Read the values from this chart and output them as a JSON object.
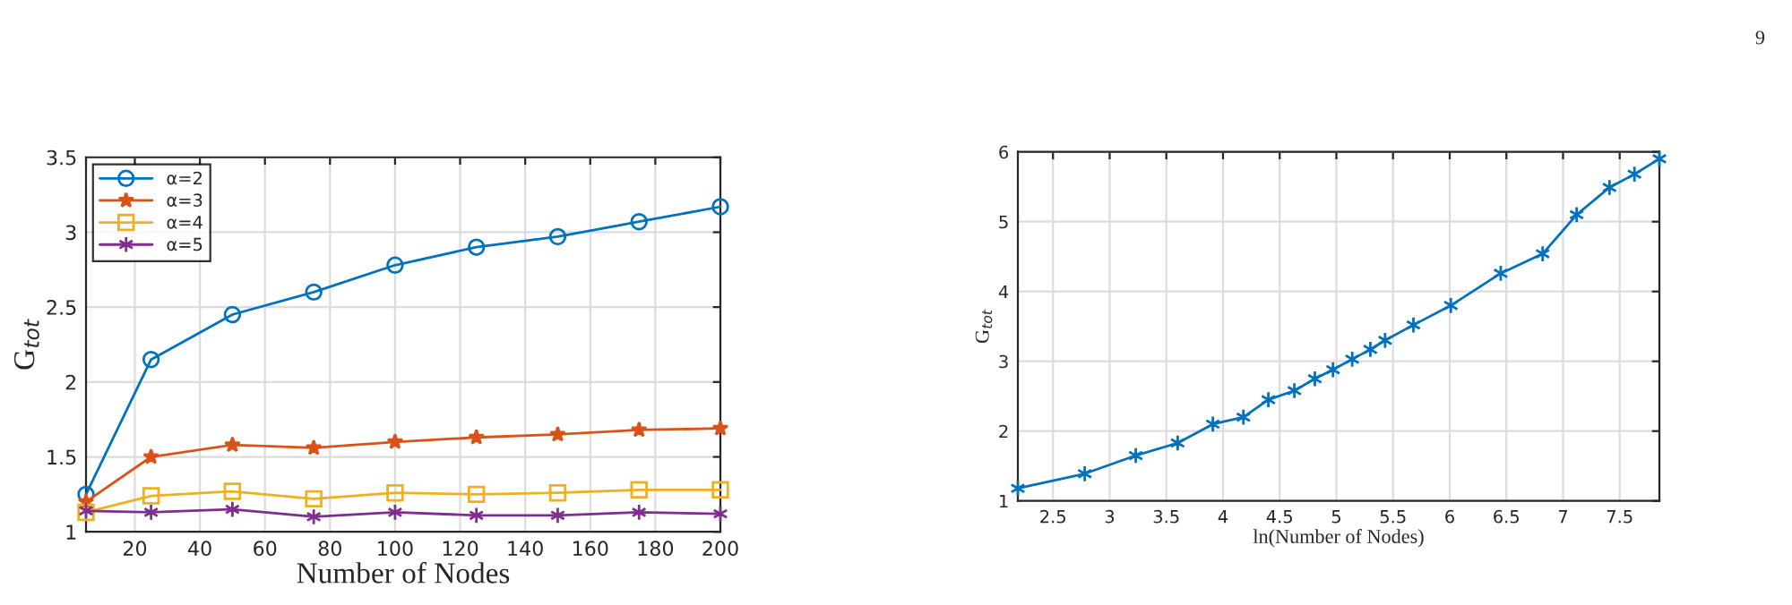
{
  "chart_data": [
    {
      "type": "line",
      "xlabel": "Number of Nodes",
      "ylabel": "G$_{tot}$",
      "x": [
        5,
        25,
        50,
        75,
        100,
        125,
        150,
        175,
        200
      ],
      "xlim": [
        5,
        200
      ],
      "xticks": [
        20,
        40,
        60,
        80,
        100,
        120,
        140,
        160,
        180,
        200
      ],
      "ylim": [
        1,
        3.5
      ],
      "yticks": [
        1,
        1.5,
        2,
        2.5,
        3,
        3.5
      ],
      "grid": true,
      "legend": "top left",
      "annotations": [
        "9"
      ],
      "series": [
        {
          "name": "α=2",
          "color": "#0072bd",
          "marker": "circle",
          "values": [
            1.25,
            2.15,
            2.45,
            2.6,
            2.78,
            2.9,
            2.97,
            3.07,
            3.17
          ]
        },
        {
          "name": "α=3",
          "color": "#d95319",
          "marker": "star",
          "values": [
            1.2,
            1.5,
            1.58,
            1.56,
            1.6,
            1.63,
            1.65,
            1.68,
            1.69
          ]
        },
        {
          "name": "α=4",
          "color": "#edb120",
          "marker": "square",
          "values": [
            1.13,
            1.24,
            1.27,
            1.22,
            1.26,
            1.25,
            1.26,
            1.28,
            1.28
          ]
        },
        {
          "name": "α=5",
          "color": "#7e2f8e",
          "marker": "cross",
          "values": [
            1.14,
            1.13,
            1.15,
            1.1,
            1.13,
            1.11,
            1.11,
            1.13,
            1.12
          ]
        }
      ]
    },
    {
      "type": "line",
      "xlabel": "ln(Number of Nodes)",
      "ylabel": "G$_{tot}$",
      "xlim": [
        2.19,
        7.85
      ],
      "xticks": [
        2.5,
        3,
        3.5,
        4,
        4.5,
        5,
        5.5,
        6,
        6.5,
        7,
        7.5
      ],
      "ylim": [
        1,
        6
      ],
      "yticks": [
        1,
        2,
        3,
        4,
        5,
        6
      ],
      "grid": true,
      "series": [
        {
          "color": "#0072bd",
          "marker": "cross",
          "x": [
            2.19,
            2.78,
            3.23,
            3.6,
            3.91,
            4.18,
            4.4,
            4.63,
            4.81,
            4.97,
            5.14,
            5.3,
            5.43,
            5.68,
            6.01,
            6.45,
            6.82,
            7.12,
            7.41,
            7.63,
            7.85
          ],
          "values": [
            1.18,
            1.39,
            1.65,
            1.83,
            2.1,
            2.2,
            2.45,
            2.58,
            2.75,
            2.88,
            3.03,
            3.17,
            3.3,
            3.52,
            3.8,
            4.26,
            4.54,
            5.1,
            5.49,
            5.68,
            5.9
          ]
        }
      ]
    }
  ]
}
